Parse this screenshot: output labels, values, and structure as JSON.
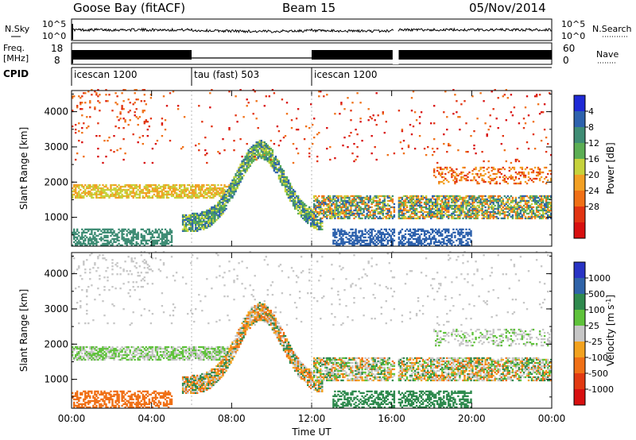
{
  "header": {
    "site": "Goose Bay (fitACF)",
    "beam": "Beam 15",
    "date": "05/Nov/2014"
  },
  "noise_panel": {
    "left_label": "N.Sky",
    "right_label": "N.Search",
    "left_ticks": [
      "10^5",
      "10^0"
    ],
    "right_ticks": [
      "10^5",
      "10^0"
    ]
  },
  "freq_panel": {
    "left_label_line1": "Freq.",
    "left_label_line2": "[MHz]",
    "left_ticks": [
      "18",
      "8"
    ],
    "right_label": "Nave",
    "right_ticks": [
      "60",
      "0"
    ]
  },
  "cpid": {
    "label": "CPID",
    "segments": [
      {
        "name": "icescan 1200",
        "start_hour": 0,
        "end_hour": 6
      },
      {
        "name": "tau (fast) 503",
        "start_hour": 6,
        "end_hour": 12
      },
      {
        "name": "icescan 1200",
        "start_hour": 12,
        "end_hour": 24
      }
    ]
  },
  "x_axis": {
    "label": "Time UT",
    "ticks": [
      "00:00",
      "04:00",
      "08:00",
      "12:00",
      "16:00",
      "20:00",
      "00:00"
    ],
    "range_hours": [
      0,
      24
    ],
    "data_gap_hours": [
      16.1,
      16.3
    ]
  },
  "chart_data": [
    {
      "type": "heatmap",
      "name": "power",
      "ylabel": "Slant Range [km]",
      "yticks": [
        "1000",
        "2000",
        "3000",
        "4000"
      ],
      "ylim": [
        180,
        4600
      ],
      "xlim": [
        0,
        24
      ],
      "colorbar_label": "Power [dB]",
      "colorbar_ticks": [
        "4",
        "8",
        "12",
        "16",
        "20",
        "24",
        "28"
      ],
      "colorbar_colors": [
        "#1f2ad6",
        "#2e62ad",
        "#3f8d75",
        "#5cae54",
        "#c6d23c",
        "#f2a024",
        "#f07016",
        "#e23412",
        "#d81010"
      ]
    },
    {
      "type": "heatmap",
      "name": "velocity",
      "ylabel": "Slant Range [km]",
      "yticks": [
        "1000",
        "2000",
        "3000",
        "4000"
      ],
      "ylim": [
        180,
        4600
      ],
      "xlim": [
        0,
        24
      ],
      "colorbar_label": "Velocity [m s^-1]",
      "colorbar_ticks": [
        "1000",
        "500",
        "100",
        "25",
        "-25",
        "-100",
        "-500",
        "-1000"
      ],
      "colorbar_colors": [
        "#2833c4",
        "#2f63a8",
        "#2f8a4e",
        "#5fc23b",
        "#c6c6c6",
        "#f2a21f",
        "#f07016",
        "#e23a12",
        "#d81010"
      ]
    }
  ]
}
